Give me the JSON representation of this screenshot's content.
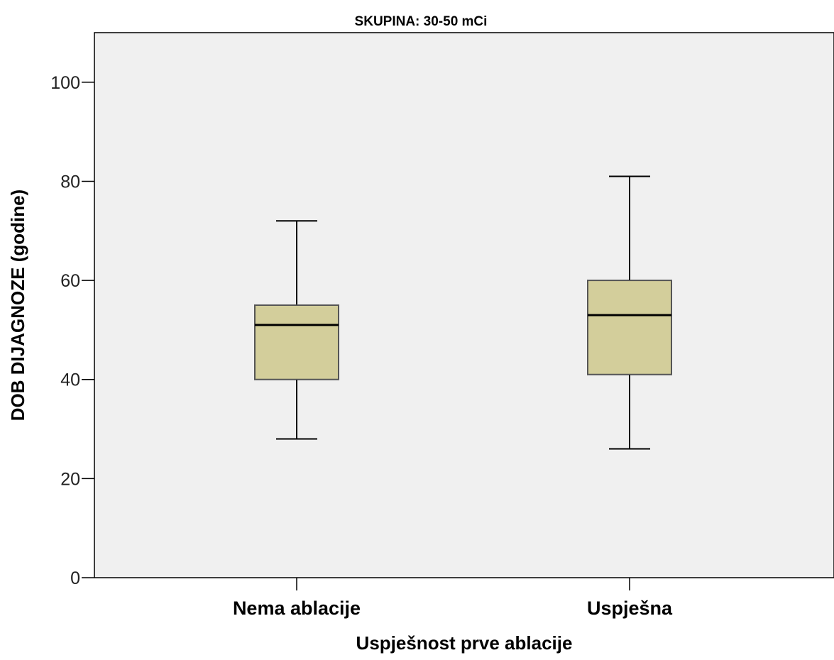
{
  "chart_data": {
    "type": "boxplot",
    "title": "SKUPINA: 30-50 mCi",
    "xlabel": "Uspješnost prve ablacije",
    "ylabel": "DOB DIJAGNOZE (godine)",
    "ylim": [
      0,
      110
    ],
    "yticks": [
      0,
      20,
      40,
      60,
      80,
      100
    ],
    "categories": [
      "Nema ablacije",
      "Uspješna"
    ],
    "boxes": [
      {
        "category": "Nema ablacije",
        "min": 28,
        "q1": 40,
        "median": 51,
        "q3": 55,
        "max": 72
      },
      {
        "category": "Uspješna",
        "min": 26,
        "q1": 41,
        "median": 53,
        "q3": 60,
        "max": 81
      }
    ],
    "grid": false,
    "colors": {
      "plot_background": "#f0f0f0",
      "box_fill": "#d3ce9b",
      "box_stroke": "#555555",
      "median": "#000000",
      "whisker": "#000000"
    }
  }
}
